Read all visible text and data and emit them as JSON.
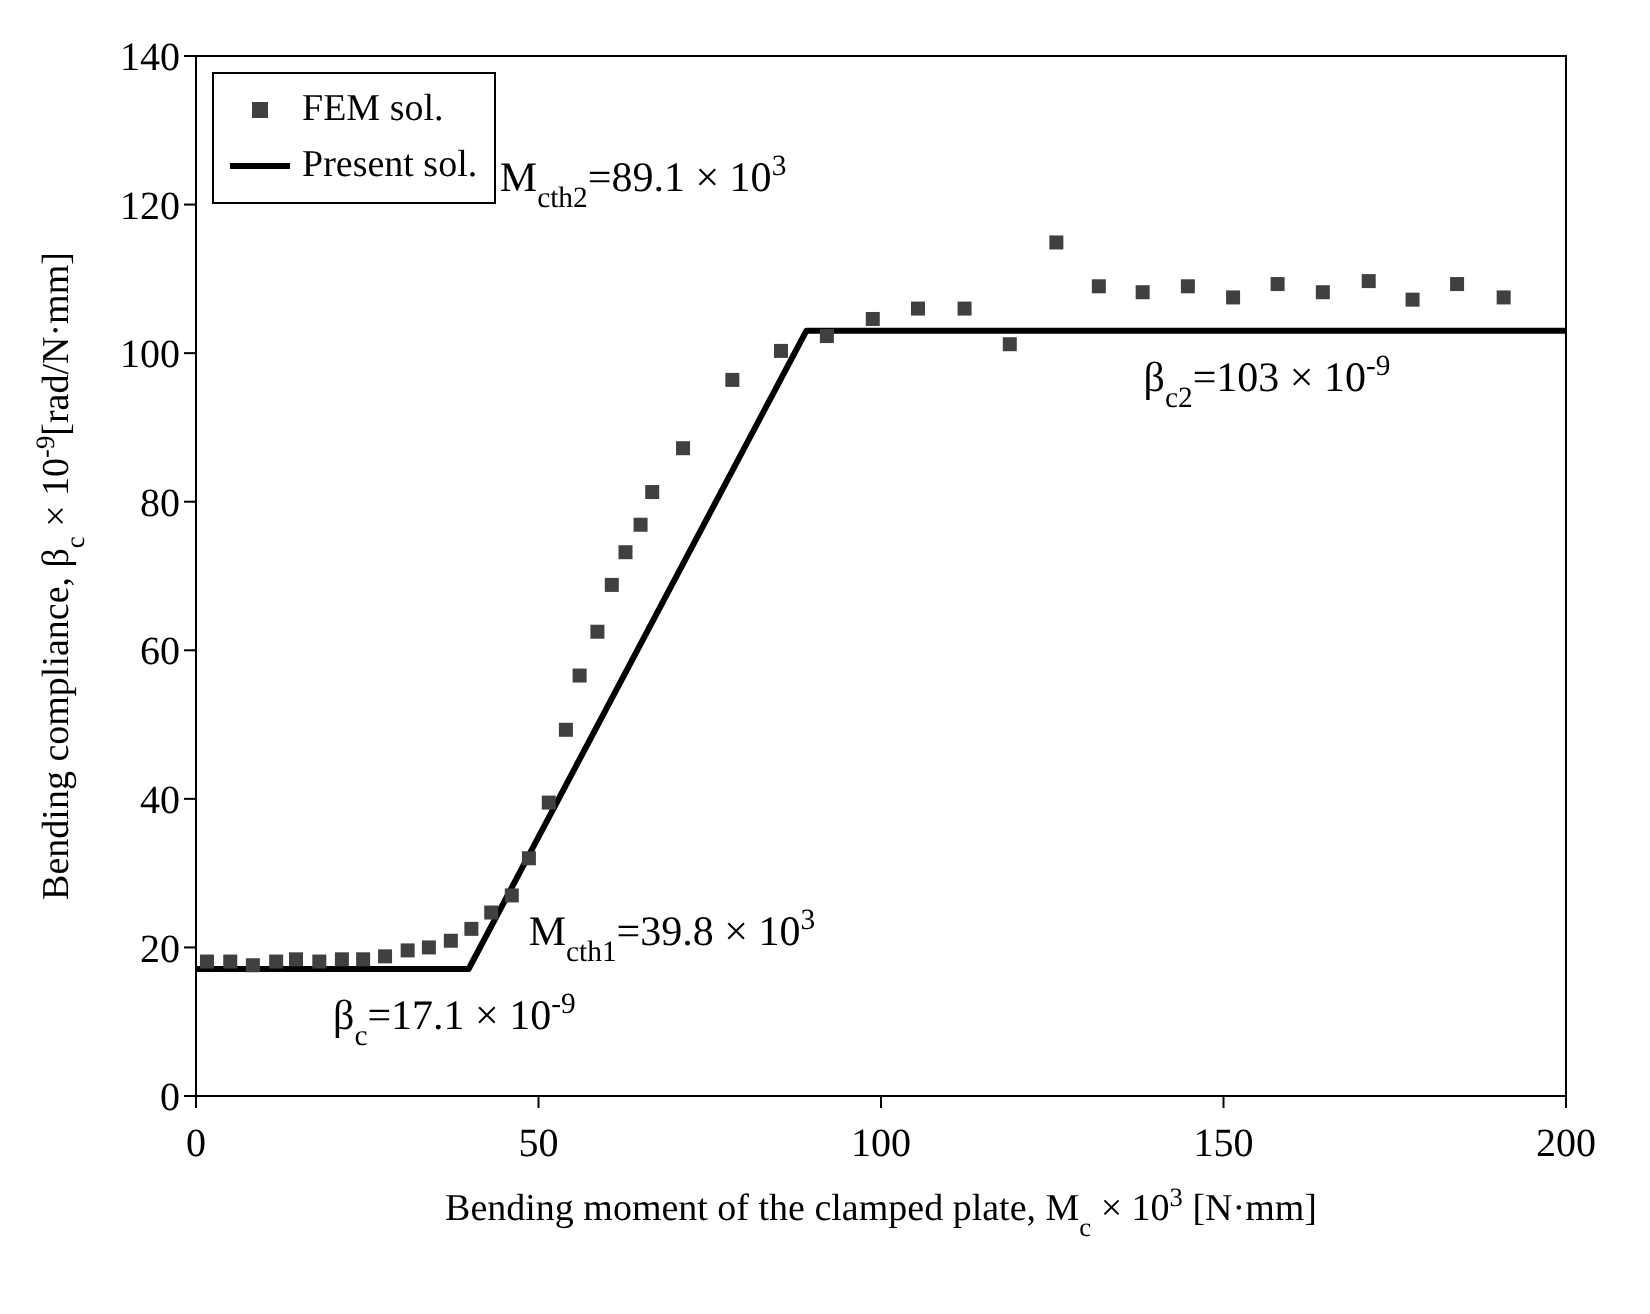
{
  "chart_data": {
    "type": "scatter",
    "xlabel": "Bending moment of the clamped plate, M$_{c}$ × 10$^{3}$ [N·mm]",
    "ylabel": "Bending compliance, β$_{c}$ × 10$^{-9}$[rad/N·mm]",
    "xlim": [
      0,
      200
    ],
    "xticks": [
      0,
      50,
      100,
      150,
      200
    ],
    "ylim": [
      0,
      140
    ],
    "yticks": [
      0,
      20,
      40,
      60,
      80,
      100,
      120,
      140
    ],
    "legend": "top left",
    "series": [
      {
        "name": "FEM sol.",
        "marker": "square",
        "color": "#404040",
        "x": [
          1.6,
          5.0,
          8.3,
          11.7,
          14.6,
          18.0,
          21.3,
          24.4,
          27.6,
          30.9,
          34.0,
          37.2,
          40.2,
          43.1,
          46.1,
          48.6,
          51.5,
          54.0,
          56.0,
          58.6,
          60.7,
          62.7,
          64.9,
          66.6,
          71.1,
          78.3,
          85.4,
          92.1,
          98.8,
          105.4,
          112.2,
          118.8,
          125.6,
          131.8,
          138.2,
          144.8,
          151.4,
          157.9,
          164.5,
          171.2,
          177.6,
          184.1,
          190.9
        ],
        "values": [
          18.1,
          18.1,
          17.6,
          18.1,
          18.4,
          18.1,
          18.4,
          18.4,
          18.8,
          19.6,
          20.0,
          20.9,
          22.5,
          24.7,
          27.0,
          32.0,
          39.5,
          49.3,
          56.6,
          62.5,
          68.8,
          73.2,
          76.9,
          81.3,
          87.2,
          96.4,
          100.3,
          102.3,
          104.6,
          106.0,
          106.0,
          101.2,
          114.9,
          109.0,
          108.2,
          109.0,
          107.5,
          109.3,
          108.2,
          109.7,
          107.2,
          109.3,
          107.5
        ]
      },
      {
        "name": "Present sol.",
        "type": "line",
        "marker": "none",
        "line_style": "solid",
        "color": "#000000",
        "x": [
          0,
          39.8,
          89.1,
          200
        ],
        "values": [
          17.1,
          17.1,
          103,
          103
        ]
      }
    ],
    "annotations": [
      {
        "text": "M$_{cth2}$=89.1 × 10$^{3}$",
        "x": 89.1,
        "y": 103
      },
      {
        "text": "β$_{c2}$=103 × 10$^{-9}$",
        "x": 150,
        "y": 103
      },
      {
        "text": "M$_{cth1}$=39.8 × 10$^{3}$",
        "x": 39.8,
        "y": 17.1
      },
      {
        "text": "β$_{c}$=17.1 × 10$^{-9}$",
        "x": 20,
        "y": 17.1
      }
    ]
  }
}
